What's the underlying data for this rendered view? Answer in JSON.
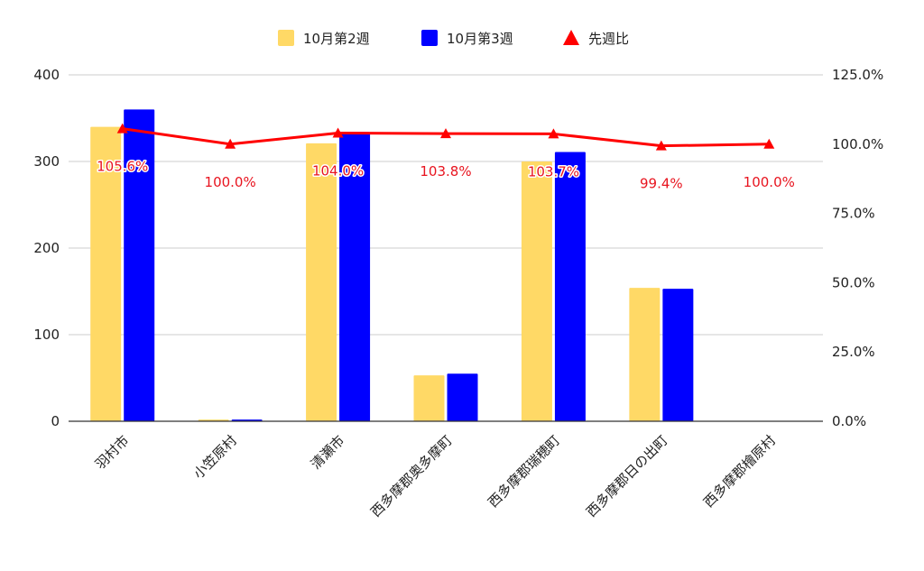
{
  "chart_data": {
    "type": "bar",
    "categories": [
      "羽村市",
      "小笠原村",
      "清瀬市",
      "西多摩郡奥多摩町",
      "西多摩郡瑞穂町",
      "西多摩郡日の出町",
      "西多摩郡檜原村"
    ],
    "series": [
      {
        "name": "10月第2週",
        "type": "bar",
        "axis": "left",
        "color": "#ffd966",
        "values": [
          340,
          2,
          321,
          53,
          300,
          154,
          0
        ]
      },
      {
        "name": "10月第3週",
        "type": "bar",
        "axis": "left",
        "color": "#0000ff",
        "values": [
          360,
          2,
          334,
          55,
          311,
          153,
          0
        ]
      },
      {
        "name": "先週比",
        "type": "line",
        "axis": "right",
        "color": "#ff0000",
        "marker": "triangle",
        "values": [
          105.6,
          100.0,
          104.0,
          103.8,
          103.7,
          99.4,
          100.0
        ],
        "labels": [
          "105.6%",
          "100.0%",
          "104.0%",
          "103.8%",
          "103.7%",
          "99.4%",
          "100.0%"
        ]
      }
    ],
    "y_left": {
      "ylim": [
        0,
        400
      ],
      "ticks": [
        0,
        100,
        200,
        300,
        400
      ],
      "tick_labels": [
        "0",
        "100",
        "200",
        "300",
        "400"
      ]
    },
    "y_right": {
      "ylim": [
        0,
        125
      ],
      "ticks": [
        0,
        25,
        50,
        75,
        100,
        125
      ],
      "tick_labels": [
        "0.0%",
        "25.0%",
        "50.0%",
        "75.0%",
        "100.0%",
        "125.0%"
      ]
    },
    "legend_position": "top",
    "grid": true,
    "title": "",
    "xlabel": "",
    "ylabel": ""
  }
}
